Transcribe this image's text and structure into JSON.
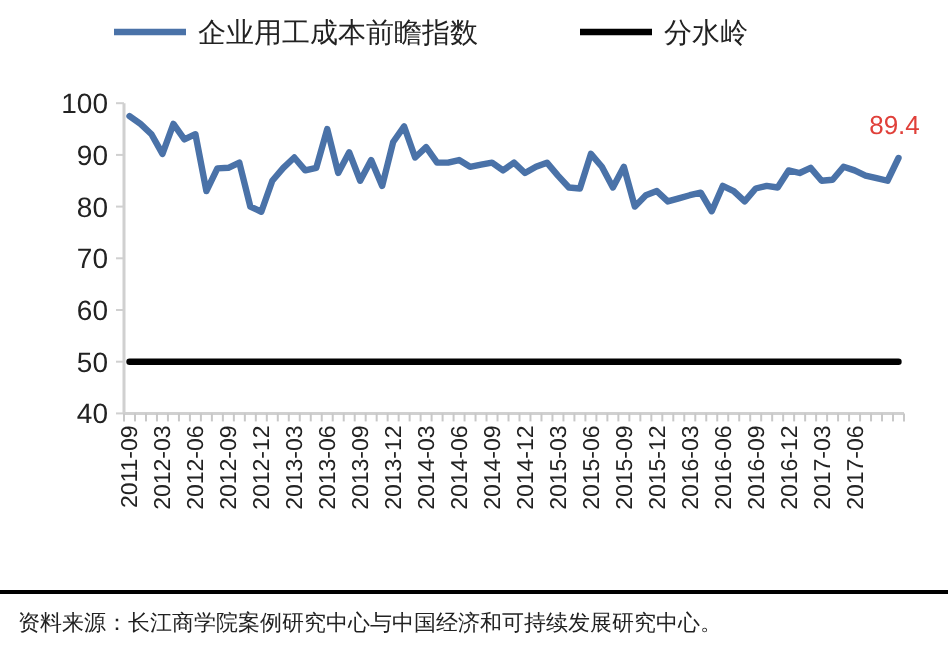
{
  "chart_data": {
    "type": "line",
    "categories": [
      "2011-09",
      null,
      null,
      "2012-03",
      null,
      null,
      "2012-06",
      null,
      null,
      "2012-09",
      null,
      null,
      "2012-12",
      null,
      null,
      "2013-03",
      null,
      null,
      "2013-06",
      null,
      null,
      "2013-09",
      null,
      null,
      "2013-12",
      null,
      null,
      "2014-03",
      null,
      null,
      "2014-06",
      null,
      null,
      "2014-09",
      null,
      null,
      "2014-12",
      null,
      null,
      "2015-03",
      null,
      null,
      "2015-06",
      null,
      null,
      "2015-09",
      null,
      null,
      "2015-12",
      null,
      null,
      "2016-03",
      null,
      null,
      "2016-06",
      null,
      null,
      "2016-09",
      null,
      null,
      "2016-12",
      null,
      null,
      "2017-03",
      null,
      null,
      "2017-06",
      null,
      null,
      null,
      null
    ],
    "series": [
      {
        "name": "企业用工成本前瞻指数",
        "color": "#4a72a8",
        "values": [
          97.5,
          96,
          94,
          90.2,
          96,
          93,
          94,
          83,
          87.4,
          87.5,
          88.5,
          80,
          79,
          85,
          87.5,
          89.5,
          87,
          87.5,
          95,
          86.5,
          90.5,
          85,
          89,
          84,
          92.5,
          95.5,
          89.5,
          91.5,
          88.5,
          88.5,
          89,
          87.7,
          88.1,
          88.5,
          87,
          88.5,
          86.5,
          87.7,
          88.5,
          86,
          83.7,
          83.5,
          90.2,
          87.7,
          83.7,
          87.7,
          80,
          82.2,
          83,
          81,
          81.6,
          82.2,
          82.7,
          79.1,
          84,
          83,
          81,
          83.5,
          84,
          83.7,
          87,
          86.5,
          87.5,
          85,
          85.2,
          87.7,
          87,
          86,
          85.5,
          85,
          89.4
        ],
        "value_labels": [
          null,
          null,
          null,
          null,
          null,
          null,
          null,
          null,
          null,
          null,
          null,
          null,
          null,
          null,
          null,
          null,
          null,
          null,
          null,
          null,
          null,
          null,
          null,
          null,
          null,
          null,
          null,
          null,
          null,
          null,
          null,
          null,
          null,
          null,
          null,
          null,
          null,
          null,
          null,
          null,
          null,
          null,
          null,
          null,
          null,
          null,
          null,
          null,
          null,
          null,
          null,
          null,
          null,
          null,
          null,
          null,
          null,
          null,
          null,
          null,
          null,
          null,
          null,
          null,
          null,
          null,
          null,
          null,
          null,
          null,
          "89.4"
        ]
      },
      {
        "name": "分水岭",
        "color": "#000000",
        "values": [
          50,
          50,
          50,
          50,
          50,
          50,
          50,
          50,
          50,
          50,
          50,
          50,
          50,
          50,
          50,
          50,
          50,
          50,
          50,
          50,
          50,
          50,
          50,
          50,
          50,
          50,
          50,
          50,
          50,
          50,
          50,
          50,
          50,
          50,
          50,
          50,
          50,
          50,
          50,
          50,
          50,
          50,
          50,
          50,
          50,
          50,
          50,
          50,
          50,
          50,
          50,
          50,
          50,
          50,
          50,
          50,
          50,
          50,
          50,
          50,
          50,
          50,
          50,
          50,
          50,
          50,
          50,
          50,
          50,
          50,
          50
        ]
      }
    ],
    "ylim": [
      40,
      100
    ],
    "yticks": [
      40,
      50,
      60,
      70,
      80,
      90,
      100
    ],
    "legend": "top",
    "annotations": [
      "资料来源：长江商学院案例研究中心与中国经济和可持续发展研究中心。"
    ]
  }
}
